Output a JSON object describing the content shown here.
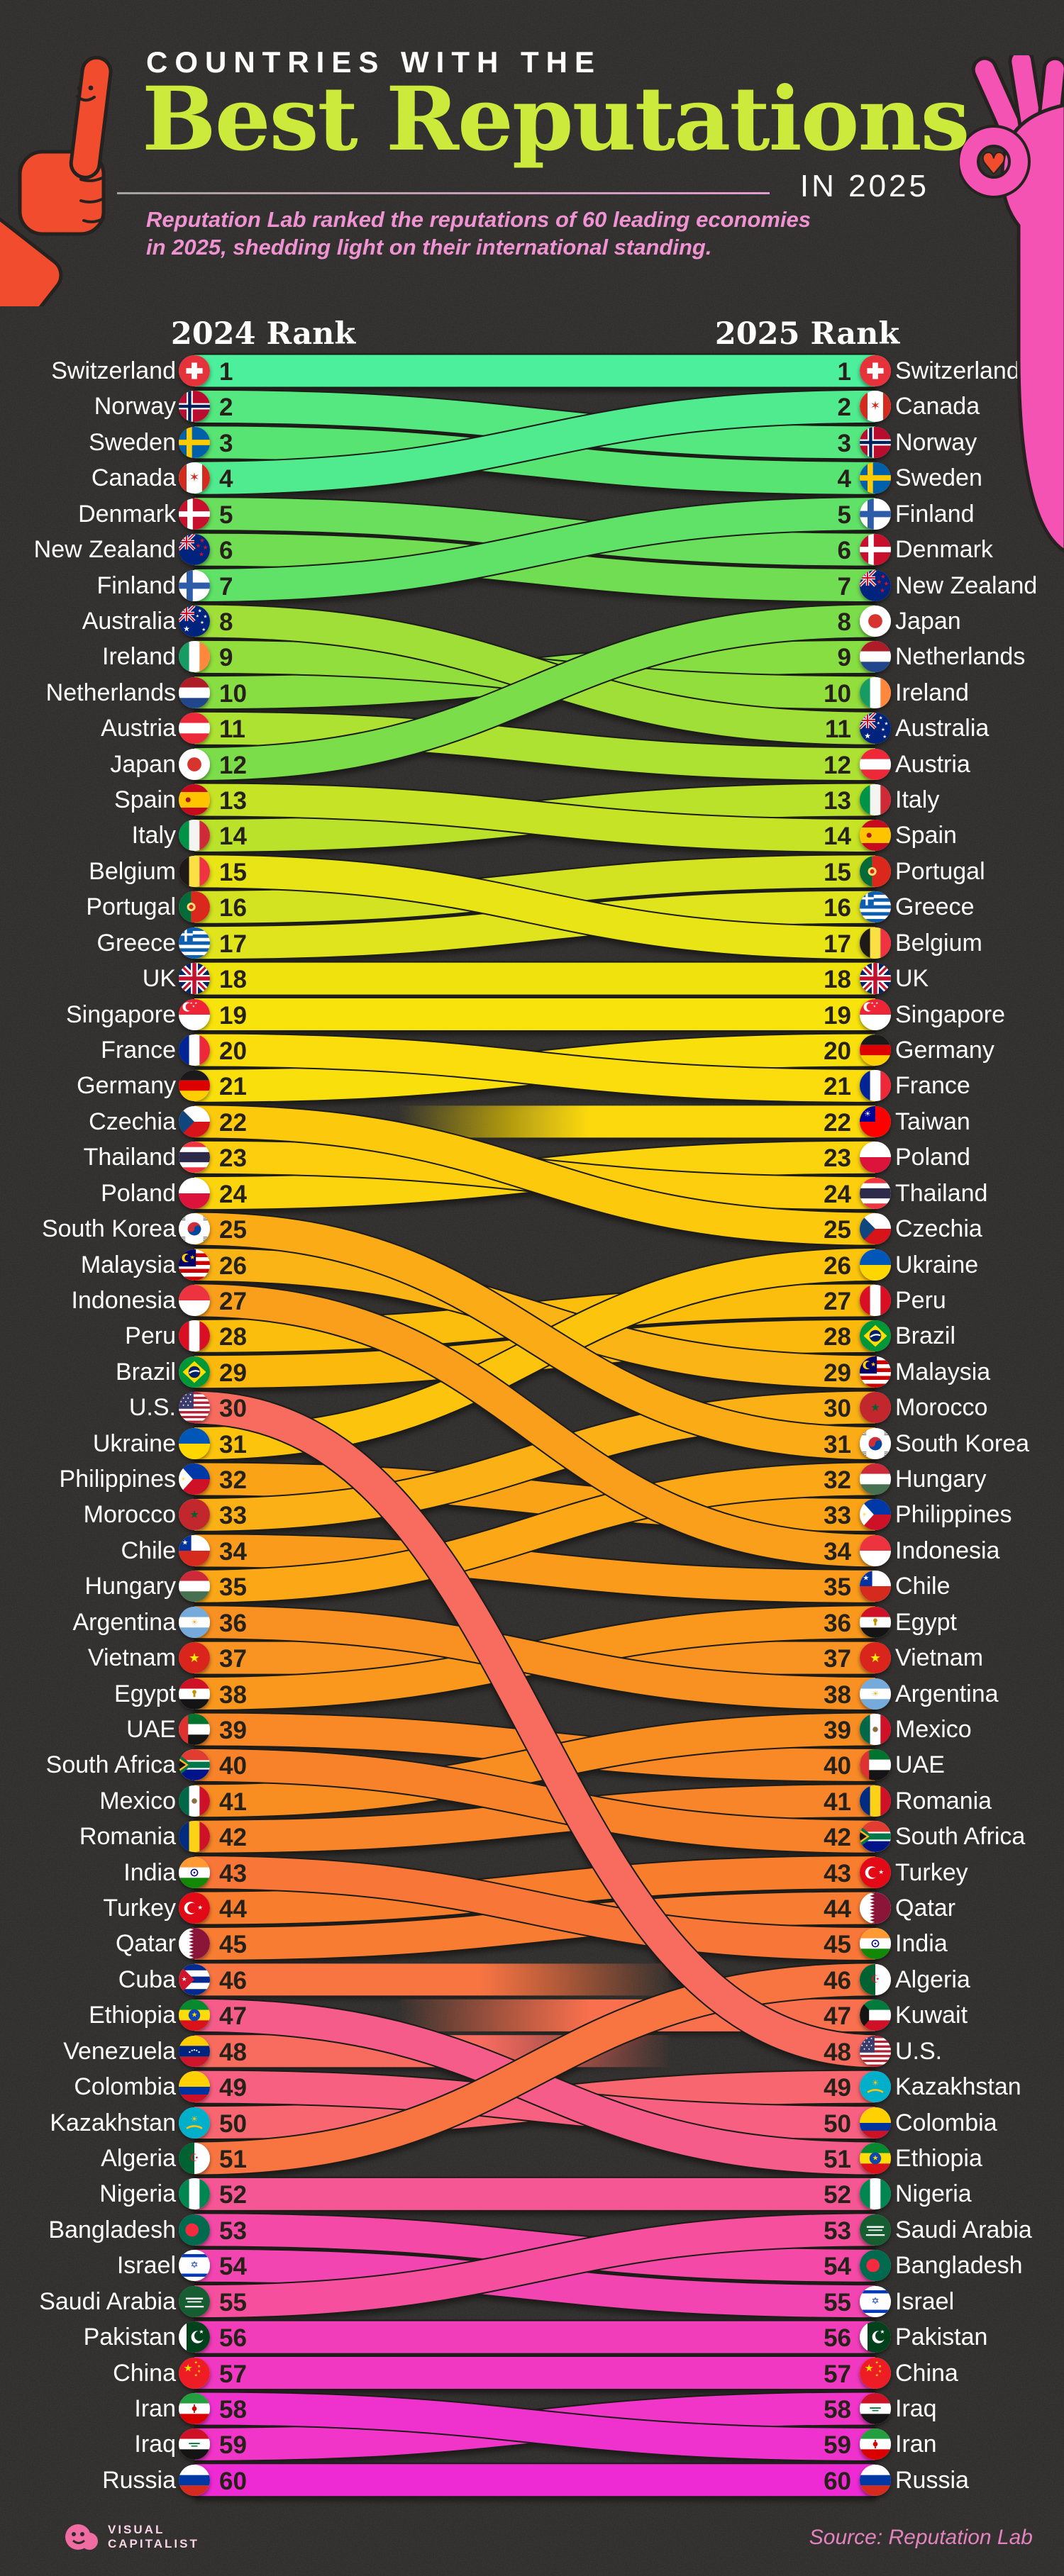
{
  "header": {
    "kicker": "COUNTRIES WITH THE",
    "title": "Best Reputations",
    "year_label": "IN 2025",
    "subtitle_line1": "Reputation Lab ranked the reputations of 60 leading economies",
    "subtitle_line2": "in 2025, shedding light on their international standing."
  },
  "columns": {
    "left": "2024 Rank",
    "right": "2025 Rank"
  },
  "footer": {
    "brand_line1": "VISUAL",
    "brand_line2": "CAPITALIST",
    "source": "Source: Reputation Lab"
  },
  "colors": {
    "background": "#2d2b29",
    "title_lime": "#cbea3c",
    "subtitle_pink": "#ef93d3",
    "label_white": "#ffffff",
    "number_ink": "#26221a",
    "ribbon_edge": "#1e1b19",
    "hand_orange": "#f04c2d",
    "hand_pink": "#f453b4",
    "source_pink": "#e383bd",
    "scale_stops": [
      [
        1,
        "#4bef9c"
      ],
      [
        4,
        "#59e472"
      ],
      [
        7,
        "#71dd52"
      ],
      [
        10,
        "#92de3c"
      ],
      [
        13,
        "#bae22c"
      ],
      [
        16,
        "#e0e41b"
      ],
      [
        19,
        "#f8e309"
      ],
      [
        22,
        "#fcd90a"
      ],
      [
        25,
        "#fcc90d"
      ],
      [
        28,
        "#fbb911"
      ],
      [
        31,
        "#fbab15"
      ],
      [
        34,
        "#fa9f1a"
      ],
      [
        37,
        "#f99420"
      ],
      [
        40,
        "#f88926"
      ],
      [
        43,
        "#f87e2e"
      ],
      [
        45,
        "#f87737"
      ],
      [
        47,
        "#f8704e"
      ],
      [
        48,
        "#f86c60"
      ],
      [
        50,
        "#f76080"
      ],
      [
        52,
        "#f55694"
      ],
      [
        54,
        "#f44aa6"
      ],
      [
        56,
        "#f23dbb"
      ],
      [
        58,
        "#f034c8"
      ],
      [
        60,
        "#ee2cd4"
      ]
    ]
  },
  "chart_data": {
    "type": "table",
    "title": "Countries with the Best Reputations in 2025",
    "subtitle": "Reputation Lab ranking of 60 leading economies, 2024 rank vs 2025 rank",
    "columns": [
      "Country",
      "2024 Rank",
      "2025 Rank"
    ],
    "rows": [
      [
        "Switzerland",
        1,
        1
      ],
      [
        "Norway",
        2,
        3
      ],
      [
        "Sweden",
        3,
        4
      ],
      [
        "Canada",
        4,
        2
      ],
      [
        "Denmark",
        5,
        6
      ],
      [
        "New Zealand",
        6,
        7
      ],
      [
        "Finland",
        7,
        5
      ],
      [
        "Australia",
        8,
        11
      ],
      [
        "Ireland",
        9,
        10
      ],
      [
        "Netherlands",
        10,
        9
      ],
      [
        "Austria",
        11,
        12
      ],
      [
        "Japan",
        12,
        8
      ],
      [
        "Spain",
        13,
        14
      ],
      [
        "Italy",
        14,
        13
      ],
      [
        "Belgium",
        15,
        17
      ],
      [
        "Portugal",
        16,
        15
      ],
      [
        "Greece",
        17,
        16
      ],
      [
        "UK",
        18,
        18
      ],
      [
        "Singapore",
        19,
        19
      ],
      [
        "France",
        20,
        21
      ],
      [
        "Germany",
        21,
        20
      ],
      [
        "Czechia",
        22,
        25
      ],
      [
        "Thailand",
        23,
        24
      ],
      [
        "Poland",
        24,
        23
      ],
      [
        "South Korea",
        25,
        31
      ],
      [
        "Malaysia",
        26,
        29
      ],
      [
        "Indonesia",
        27,
        34
      ],
      [
        "Peru",
        28,
        27
      ],
      [
        "Brazil",
        29,
        28
      ],
      [
        "U.S.",
        30,
        48
      ],
      [
        "Ukraine",
        31,
        26
      ],
      [
        "Philippines",
        32,
        33
      ],
      [
        "Morocco",
        33,
        30
      ],
      [
        "Chile",
        34,
        35
      ],
      [
        "Hungary",
        35,
        32
      ],
      [
        "Argentina",
        36,
        38
      ],
      [
        "Vietnam",
        37,
        37
      ],
      [
        "Egypt",
        38,
        36
      ],
      [
        "UAE",
        39,
        40
      ],
      [
        "South Africa",
        40,
        42
      ],
      [
        "Mexico",
        41,
        39
      ],
      [
        "Romania",
        42,
        41
      ],
      [
        "India",
        43,
        45
      ],
      [
        "Turkey",
        44,
        43
      ],
      [
        "Qatar",
        45,
        44
      ],
      [
        "Cuba",
        46,
        null
      ],
      [
        "Ethiopia",
        47,
        51
      ],
      [
        "Venezuela",
        48,
        null
      ],
      [
        "Colombia",
        49,
        50
      ],
      [
        "Kazakhstan",
        50,
        49
      ],
      [
        "Algeria",
        51,
        46
      ],
      [
        "Nigeria",
        52,
        52
      ],
      [
        "Bangladesh",
        53,
        54
      ],
      [
        "Israel",
        54,
        55
      ],
      [
        "Saudi Arabia",
        55,
        53
      ],
      [
        "Pakistan",
        56,
        56
      ],
      [
        "China",
        57,
        57
      ],
      [
        "Iran",
        58,
        59
      ],
      [
        "Iraq",
        59,
        58
      ],
      [
        "Russia",
        60,
        60
      ],
      [
        "Taiwan",
        null,
        22
      ],
      [
        "Kuwait",
        null,
        47
      ]
    ]
  }
}
